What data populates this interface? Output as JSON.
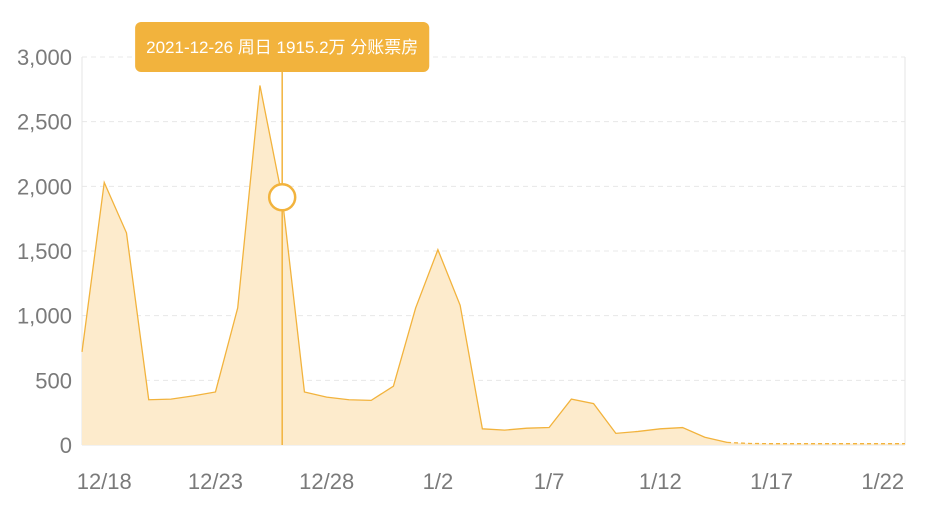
{
  "chart_data": {
    "type": "area",
    "title": "",
    "xlabel": "",
    "ylabel": "",
    "ylim": [
      0,
      3000
    ],
    "y_ticks": [
      0,
      500,
      1000,
      1500,
      2000,
      2500,
      3000
    ],
    "y_tick_labels": [
      "0",
      "500",
      "1,000",
      "1,500",
      "2,000",
      "2,500",
      "3,000"
    ],
    "x_ticks": [
      "12/18",
      "12/23",
      "12/28",
      "1/2",
      "1/7",
      "1/12",
      "1/17",
      "1/22"
    ],
    "x": [
      "12/17",
      "12/18",
      "12/19",
      "12/20",
      "12/21",
      "12/22",
      "12/23",
      "12/24",
      "12/25",
      "12/26",
      "12/27",
      "12/28",
      "12/29",
      "12/30",
      "12/31",
      "1/1",
      "1/2",
      "1/3",
      "1/4",
      "1/5",
      "1/6",
      "1/7",
      "1/8",
      "1/9",
      "1/10",
      "1/11",
      "1/12",
      "1/13",
      "1/14",
      "1/15",
      "1/16",
      "1/17",
      "1/18",
      "1/19",
      "1/20",
      "1/21",
      "1/22",
      "1/23"
    ],
    "series": [
      {
        "values": [
          720,
          2030,
          1640,
          350,
          355,
          380,
          410,
          1060,
          2780,
          1915.2,
          410,
          370,
          350,
          345,
          455,
          1060,
          1510,
          1080,
          125,
          115,
          130,
          135,
          355,
          320,
          90,
          105,
          125,
          135,
          60,
          20,
          12,
          10,
          10,
          10,
          10,
          10,
          10,
          10
        ],
        "dashed_from_index": 29
      }
    ],
    "grid": true,
    "color": "#f2b33d",
    "fill_color": "#fdebcc",
    "highlight_index": 9,
    "tooltip": "2021-12-26 周日 1915.2万 分账票房"
  }
}
